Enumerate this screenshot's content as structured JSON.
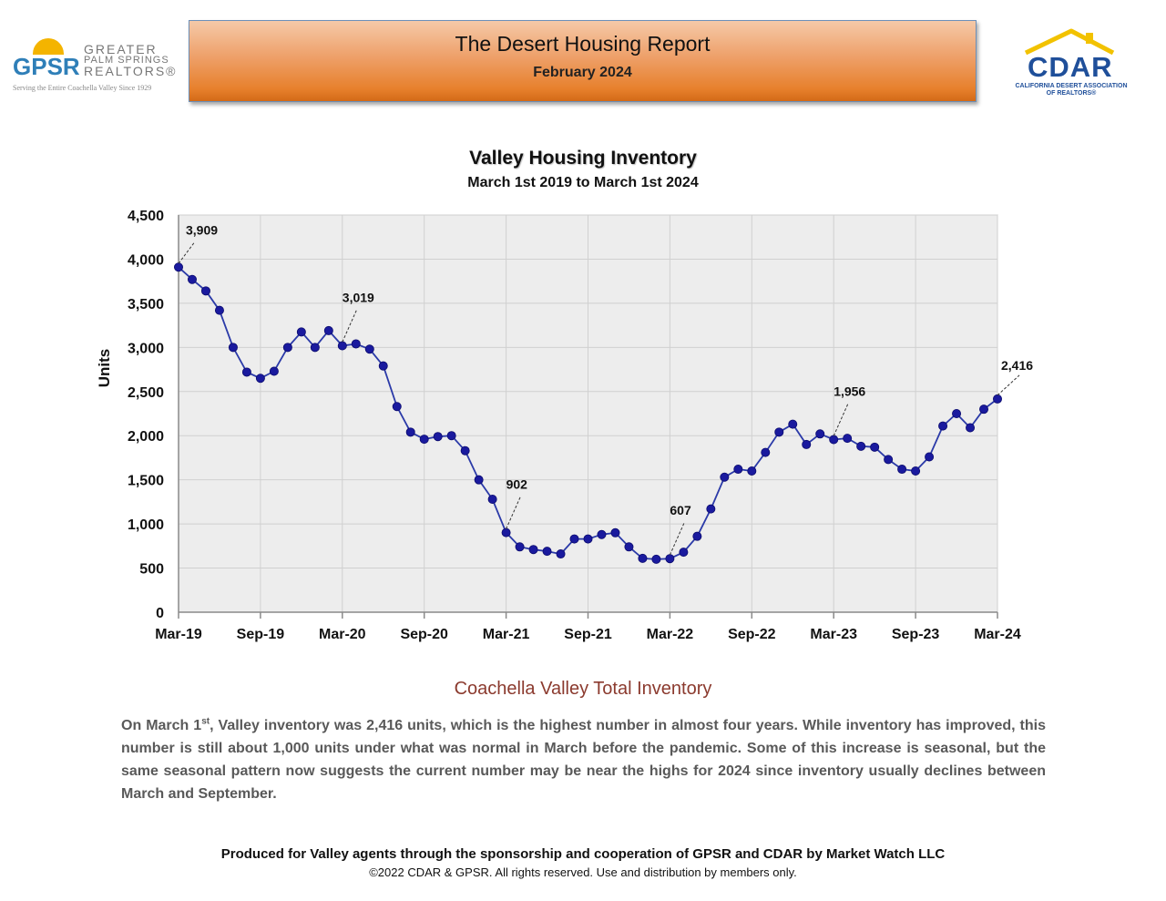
{
  "header": {
    "title": "The Desert Housing Report",
    "date": "February 2024",
    "gpsr_logo": {
      "mark": "GPSR",
      "name_lines": [
        "GREATER",
        "PALM SPRINGS",
        "REALTORS®"
      ],
      "tagline": "Serving the Entire Coachella Valley Since 1929"
    },
    "cdar_logo": {
      "mark": "CDAR",
      "sub_lines": [
        "CALIFORNIA DESERT ASSOCIATION",
        "OF REALTORS®"
      ]
    }
  },
  "chart_data": {
    "type": "line",
    "title": "Valley Housing Inventory",
    "subtitle": "March 1st 2019 to March 1st 2024",
    "ylabel": "Units",
    "ylim": [
      0,
      4500
    ],
    "yticks": [
      0,
      500,
      1000,
      1500,
      2000,
      2500,
      3000,
      3500,
      4000,
      4500
    ],
    "ytick_labels": [
      "0",
      "500",
      "1,000",
      "1,500",
      "2,000",
      "2,500",
      "3,000",
      "3,500",
      "4,000",
      "4,500"
    ],
    "xtick_labels": [
      "Mar-19",
      "Sep-19",
      "Mar-20",
      "Sep-20",
      "Mar-21",
      "Sep-21",
      "Mar-22",
      "Sep-22",
      "Mar-23",
      "Sep-23",
      "Mar-24"
    ],
    "xtick_month_index": [
      0,
      6,
      12,
      18,
      24,
      30,
      36,
      42,
      48,
      54,
      60
    ],
    "grid": true,
    "line_color": "#2b3aa8",
    "marker_color": "#1a1a9e",
    "plot_background": "#ededed",
    "series": [
      {
        "values": [
          3909,
          3770,
          3640,
          3420,
          3000,
          2720,
          2650,
          2730,
          3000,
          3175,
          3000,
          3190,
          3019,
          3040,
          2980,
          2790,
          2330,
          2040,
          1960,
          1990,
          2000,
          1830,
          1500,
          1280,
          902,
          740,
          710,
          690,
          660,
          830,
          830,
          880,
          900,
          740,
          610,
          600,
          607,
          680,
          860,
          1170,
          1530,
          1620,
          1600,
          1810,
          2040,
          2130,
          1900,
          2020,
          1956,
          1970,
          1880,
          1870,
          1730,
          1620,
          1600,
          1760,
          2110,
          2250,
          2090,
          2300,
          2416
        ]
      }
    ],
    "annotations": [
      {
        "index": 0,
        "label": "3,909"
      },
      {
        "index": 12,
        "label": "3,019"
      },
      {
        "index": 24,
        "label": "902"
      },
      {
        "index": 36,
        "label": "607"
      },
      {
        "index": 48,
        "label": "1,956"
      },
      {
        "index": 60,
        "label": "2,416"
      }
    ]
  },
  "section": {
    "title": "Coachella Valley Total Inventory",
    "paragraph_lead": "On March 1",
    "paragraph_sup": "st",
    "paragraph_rest": ", Valley inventory was 2,416 units, which is the highest number in almost four years.  While inventory has improved, this number is still about 1,000 units under what was normal in March before the pandemic. Some of this increase is seasonal, but the same seasonal pattern now suggests the current number may be near the highs for 2024 since inventory usually declines between March and September."
  },
  "footer": {
    "line1": "Produced for Valley agents through the sponsorship and cooperation of GPSR and CDAR by Market Watch LLC",
    "line2": "©2022 CDAR & GPSR.  All rights reserved.  Use and distribution by members only."
  }
}
